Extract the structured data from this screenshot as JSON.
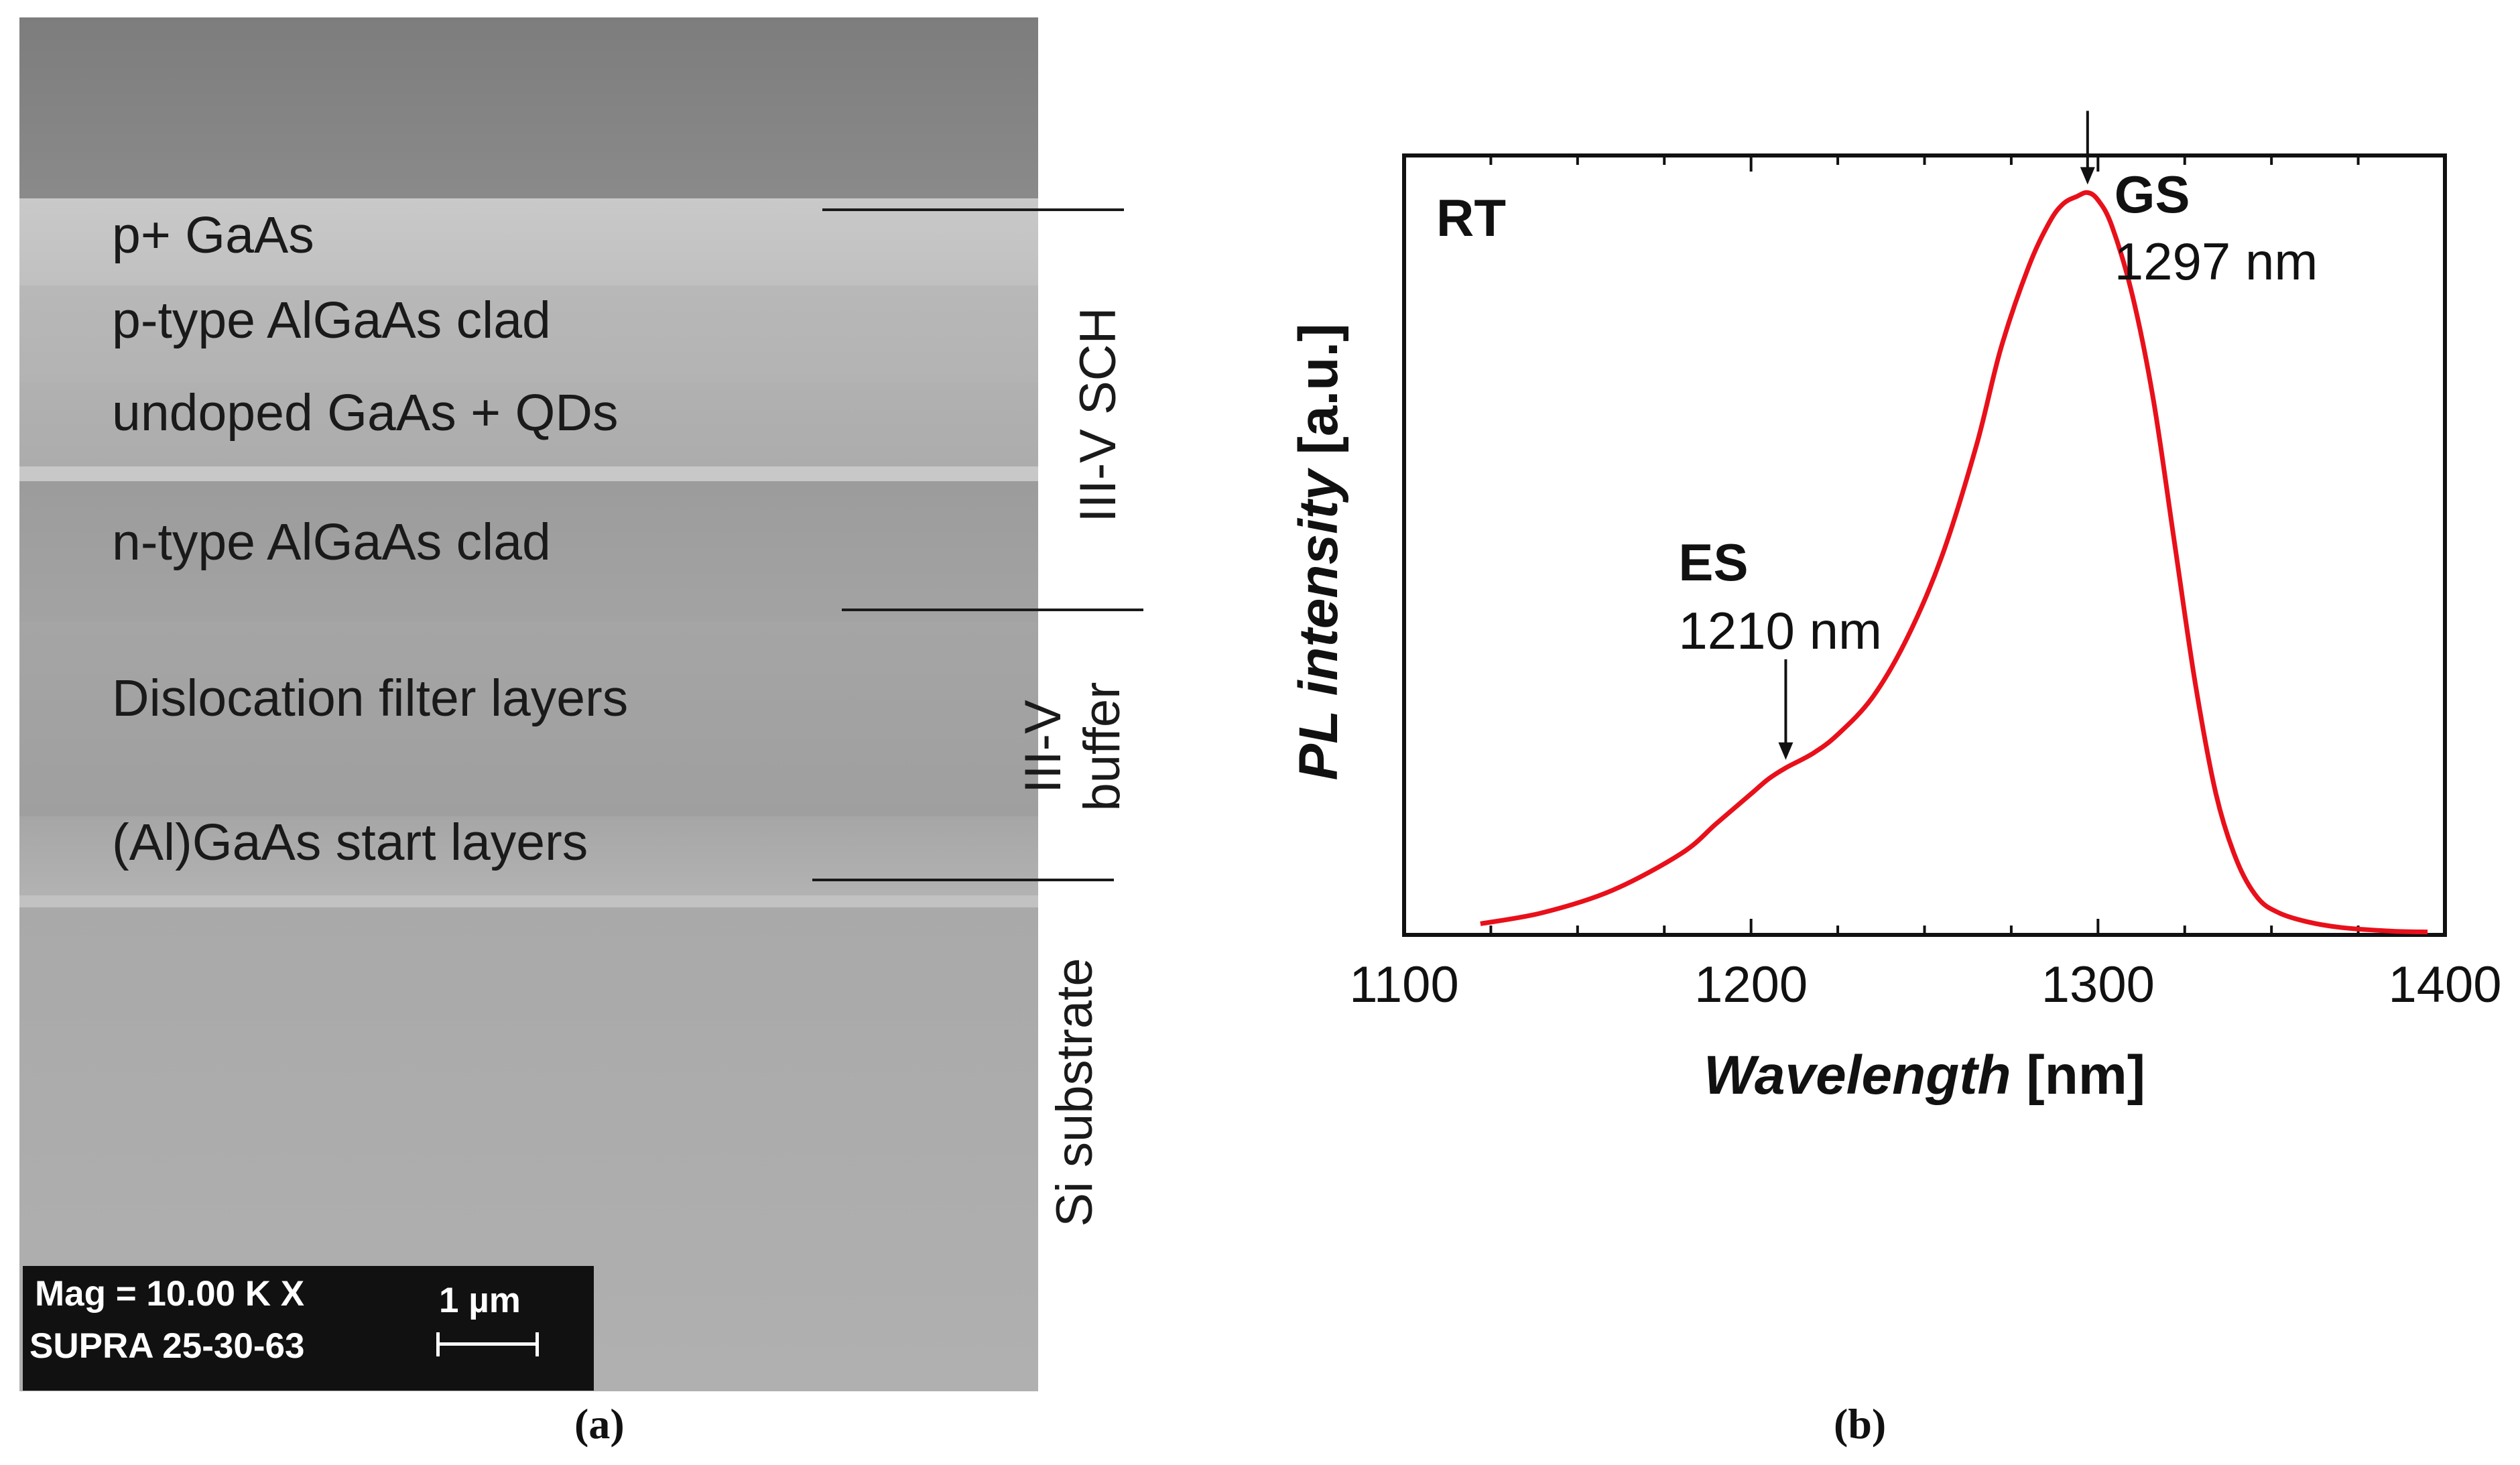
{
  "panel_a": {
    "tag": "(a)",
    "layers": [
      {
        "label": "p+ GaAs"
      },
      {
        "label": "p-type AlGaAs clad"
      },
      {
        "label": "undoped GaAs + QDs"
      },
      {
        "label": "n-type AlGaAs clad"
      },
      {
        "label": "Dislocation filter layers"
      },
      {
        "label": "(Al)GaAs start layers"
      }
    ],
    "groups": {
      "sch": "III-V SCH",
      "buffer_line1": "III-V",
      "buffer_line2": "buffer",
      "substrate": "Si substrate"
    },
    "scalebar": {
      "mag": "Mag =  10.00 K X",
      "instrument": "SUPRA 25-30-63",
      "scale": "1 µm"
    },
    "colors": {
      "background": "#8e8e8e",
      "scalebar_box": "#111111"
    }
  },
  "panel_b": {
    "tag": "(b)"
  },
  "chart_data": {
    "type": "line",
    "title": "",
    "corner_label": "RT",
    "xlabel_italic": "Wavelength",
    "xlabel_unit": "[nm]",
    "ylabel_italic": "PL intensity",
    "ylabel_unit": "[a.u.]",
    "xlim": [
      1100,
      1400
    ],
    "ylim": [
      0,
      1.05
    ],
    "xticks": [
      1100,
      1200,
      1300,
      1400
    ],
    "y_ticklabels_shown": false,
    "line_color": "#e8101a",
    "series": [
      {
        "name": "PL spectrum",
        "x": [
          1122,
          1140,
          1160,
          1180,
          1190,
          1200,
          1205,
          1210,
          1218,
          1225,
          1235,
          1245,
          1255,
          1265,
          1272,
          1280,
          1286,
          1290,
          1294,
          1297,
          1300,
          1304,
          1310,
          1316,
          1322,
          1328,
          1334,
          1340,
          1346,
          1352,
          1360,
          1370,
          1385,
          1395
        ],
        "y": [
          0.015,
          0.03,
          0.06,
          0.11,
          0.15,
          0.19,
          0.21,
          0.225,
          0.245,
          0.27,
          0.32,
          0.4,
          0.51,
          0.66,
          0.79,
          0.9,
          0.96,
          0.985,
          0.995,
          1.0,
          0.99,
          0.955,
          0.86,
          0.72,
          0.53,
          0.34,
          0.19,
          0.1,
          0.05,
          0.03,
          0.018,
          0.01,
          0.005,
          0.004
        ]
      }
    ],
    "annotations": [
      {
        "name": "GS",
        "label": "GS",
        "value_label": "1297 nm",
        "x": 1297,
        "y": 1.0
      },
      {
        "name": "ES",
        "label": "ES",
        "value_label": "1210 nm",
        "x": 1210,
        "y": 0.225
      }
    ]
  }
}
